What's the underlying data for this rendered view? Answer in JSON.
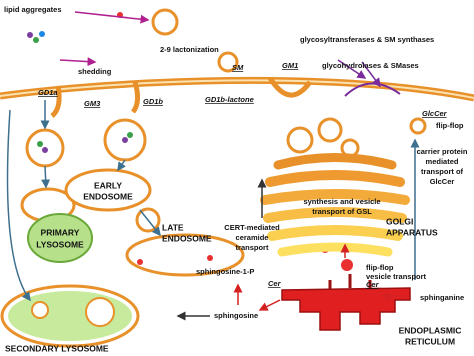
{
  "labels": {
    "lipid_aggregates": "lipid aggregates",
    "shedding": "shedding",
    "lactonization": "2-9 lactonization",
    "gd1a": "GD1a",
    "gm3": "GM3",
    "gd1b": "GD1b",
    "gd1b_lactone": "GD1b-lactone",
    "sm": "SM",
    "gm1": "GM1",
    "glycosyltransferases": "glycosyltransferases & SM synthases",
    "glycohydrolases": "glycohydrolases & SMases",
    "glccer": "GlcCer",
    "flip_flop_top": "flip-flop",
    "carrier_transport": [
      "carrier protein",
      "mediated",
      "transport of",
      "GlcCer"
    ],
    "early_endosome": [
      "EARLY",
      "ENDOSOME"
    ],
    "late_endosome": [
      "LATE",
      "ENDOSOME"
    ],
    "primary_lysosome": [
      "PRIMARY",
      "LYSOSOME"
    ],
    "cert_transport": [
      "CERT-mediated",
      "ceramide",
      "transport"
    ],
    "gsl_synthesis": [
      "synthesis and vesicle",
      "transport of GSL"
    ],
    "golgi": [
      "GOLGI",
      "APPARATUS"
    ],
    "flip_flop_vesicle": [
      "flip-flop",
      "vesicle transport"
    ],
    "sphingosine_1p": "sphingosine-1-P",
    "cer_left": "Cer",
    "cer_right": "Cer",
    "sphinganine": "sphinganine",
    "sphingosine": "sphingosine",
    "secondary_lysosome": "SECONDARY LYSOSOME",
    "er": [
      "ENDOPLASMIC",
      "RETICULUM"
    ]
  }
}
